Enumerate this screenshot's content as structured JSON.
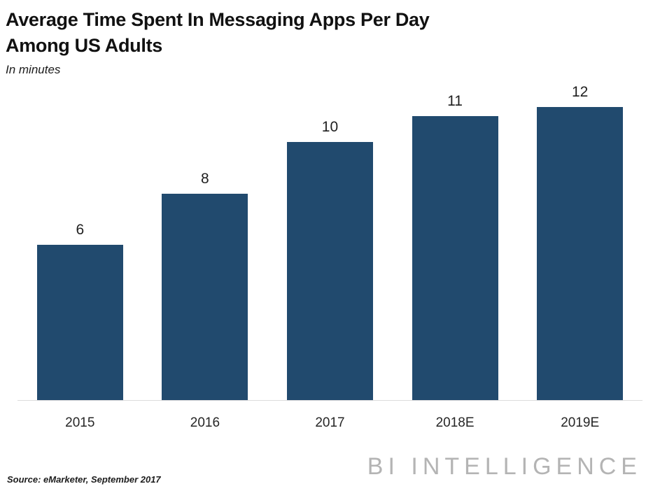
{
  "header": {
    "title_line1": "Average Time Spent In Messaging Apps Per Day",
    "title_line2": "Among US Adults",
    "subtitle": "In minutes"
  },
  "chart_data": {
    "type": "bar",
    "title": "Average Time Spent In Messaging Apps Per Day Among US Adults",
    "subtitle": "In minutes",
    "categories": [
      "2015",
      "2016",
      "2017",
      "2018E",
      "2019E"
    ],
    "values": [
      6,
      8,
      10,
      11,
      12
    ],
    "data_labels": [
      "6",
      "8",
      "10",
      "11",
      "12"
    ],
    "xlabel": "",
    "ylabel": "minutes",
    "ylim": [
      0,
      12
    ],
    "grid": false,
    "legend": false,
    "bar_color": "#214a6e"
  },
  "footer": {
    "source": "Source: eMarketer, September 2017",
    "brand": "BI INTELLIGENCE"
  },
  "colors": {
    "bar": "#214a6e",
    "axis_line": "#dcdcdc",
    "brand_gray": "#b4b4b4",
    "text": "#1a1a1a"
  }
}
